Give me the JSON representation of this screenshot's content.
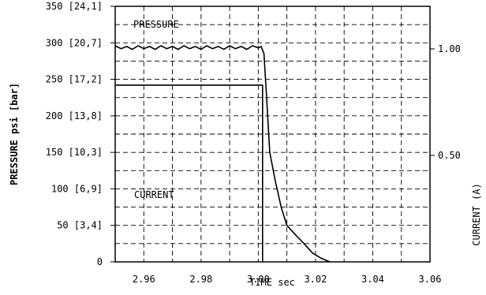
{
  "chart_data": {
    "type": "line",
    "xlabel": "TIME sec",
    "ylabel": "PRESSURE psi [bar]",
    "y2label": "CURRENT (A)",
    "xlim": [
      2.95,
      3.06
    ],
    "ylim": [
      0,
      350
    ],
    "y2lim": [
      0,
      1.2
    ],
    "grid": true,
    "x_ticks": [
      2.96,
      2.98,
      3.0,
      3.02,
      3.04,
      3.06
    ],
    "x_tick_labels": [
      "2.96",
      "2.98",
      "3.00",
      "3.02",
      "3.04",
      "3.06"
    ],
    "y_ticks": [
      0,
      50,
      100,
      150,
      200,
      250,
      300,
      350
    ],
    "y_tick_labels": [
      "0",
      "50 [3,4]",
      "100 [6,9]",
      "150 [10,3]",
      "200 [13,8]",
      "250 [17,2]",
      "300 [20,7]",
      "350 [24,1]"
    ],
    "y2_ticks": [
      0.5,
      1.0
    ],
    "y2_tick_labels": [
      "0.50",
      "1.00"
    ],
    "series": [
      {
        "name": "PRESSURE",
        "axis": "left",
        "x": [
          2.95,
          2.952,
          2.954,
          2.956,
          2.958,
          2.96,
          2.962,
          2.964,
          2.966,
          2.968,
          2.97,
          2.972,
          2.974,
          2.976,
          2.978,
          2.98,
          2.982,
          2.984,
          2.986,
          2.988,
          2.99,
          2.992,
          2.994,
          2.996,
          2.998,
          3.0,
          3.001,
          3.002,
          3.003,
          3.004,
          3.006,
          3.008,
          3.01,
          3.013,
          3.016,
          3.019,
          3.022,
          3.025
        ],
        "y": [
          296,
          292,
          295,
          291,
          296,
          292,
          295,
          291,
          296,
          292,
          295,
          291,
          296,
          292,
          295,
          291,
          296,
          292,
          295,
          291,
          296,
          292,
          295,
          291,
          296,
          293,
          295,
          285,
          220,
          150,
          110,
          75,
          50,
          37,
          25,
          12,
          5,
          0
        ]
      },
      {
        "name": "CURRENT",
        "axis": "right",
        "x": [
          2.95,
          3.0015,
          3.0015,
          3.0015
        ],
        "y": [
          0.83,
          0.83,
          0.0,
          0.0
        ]
      }
    ]
  }
}
